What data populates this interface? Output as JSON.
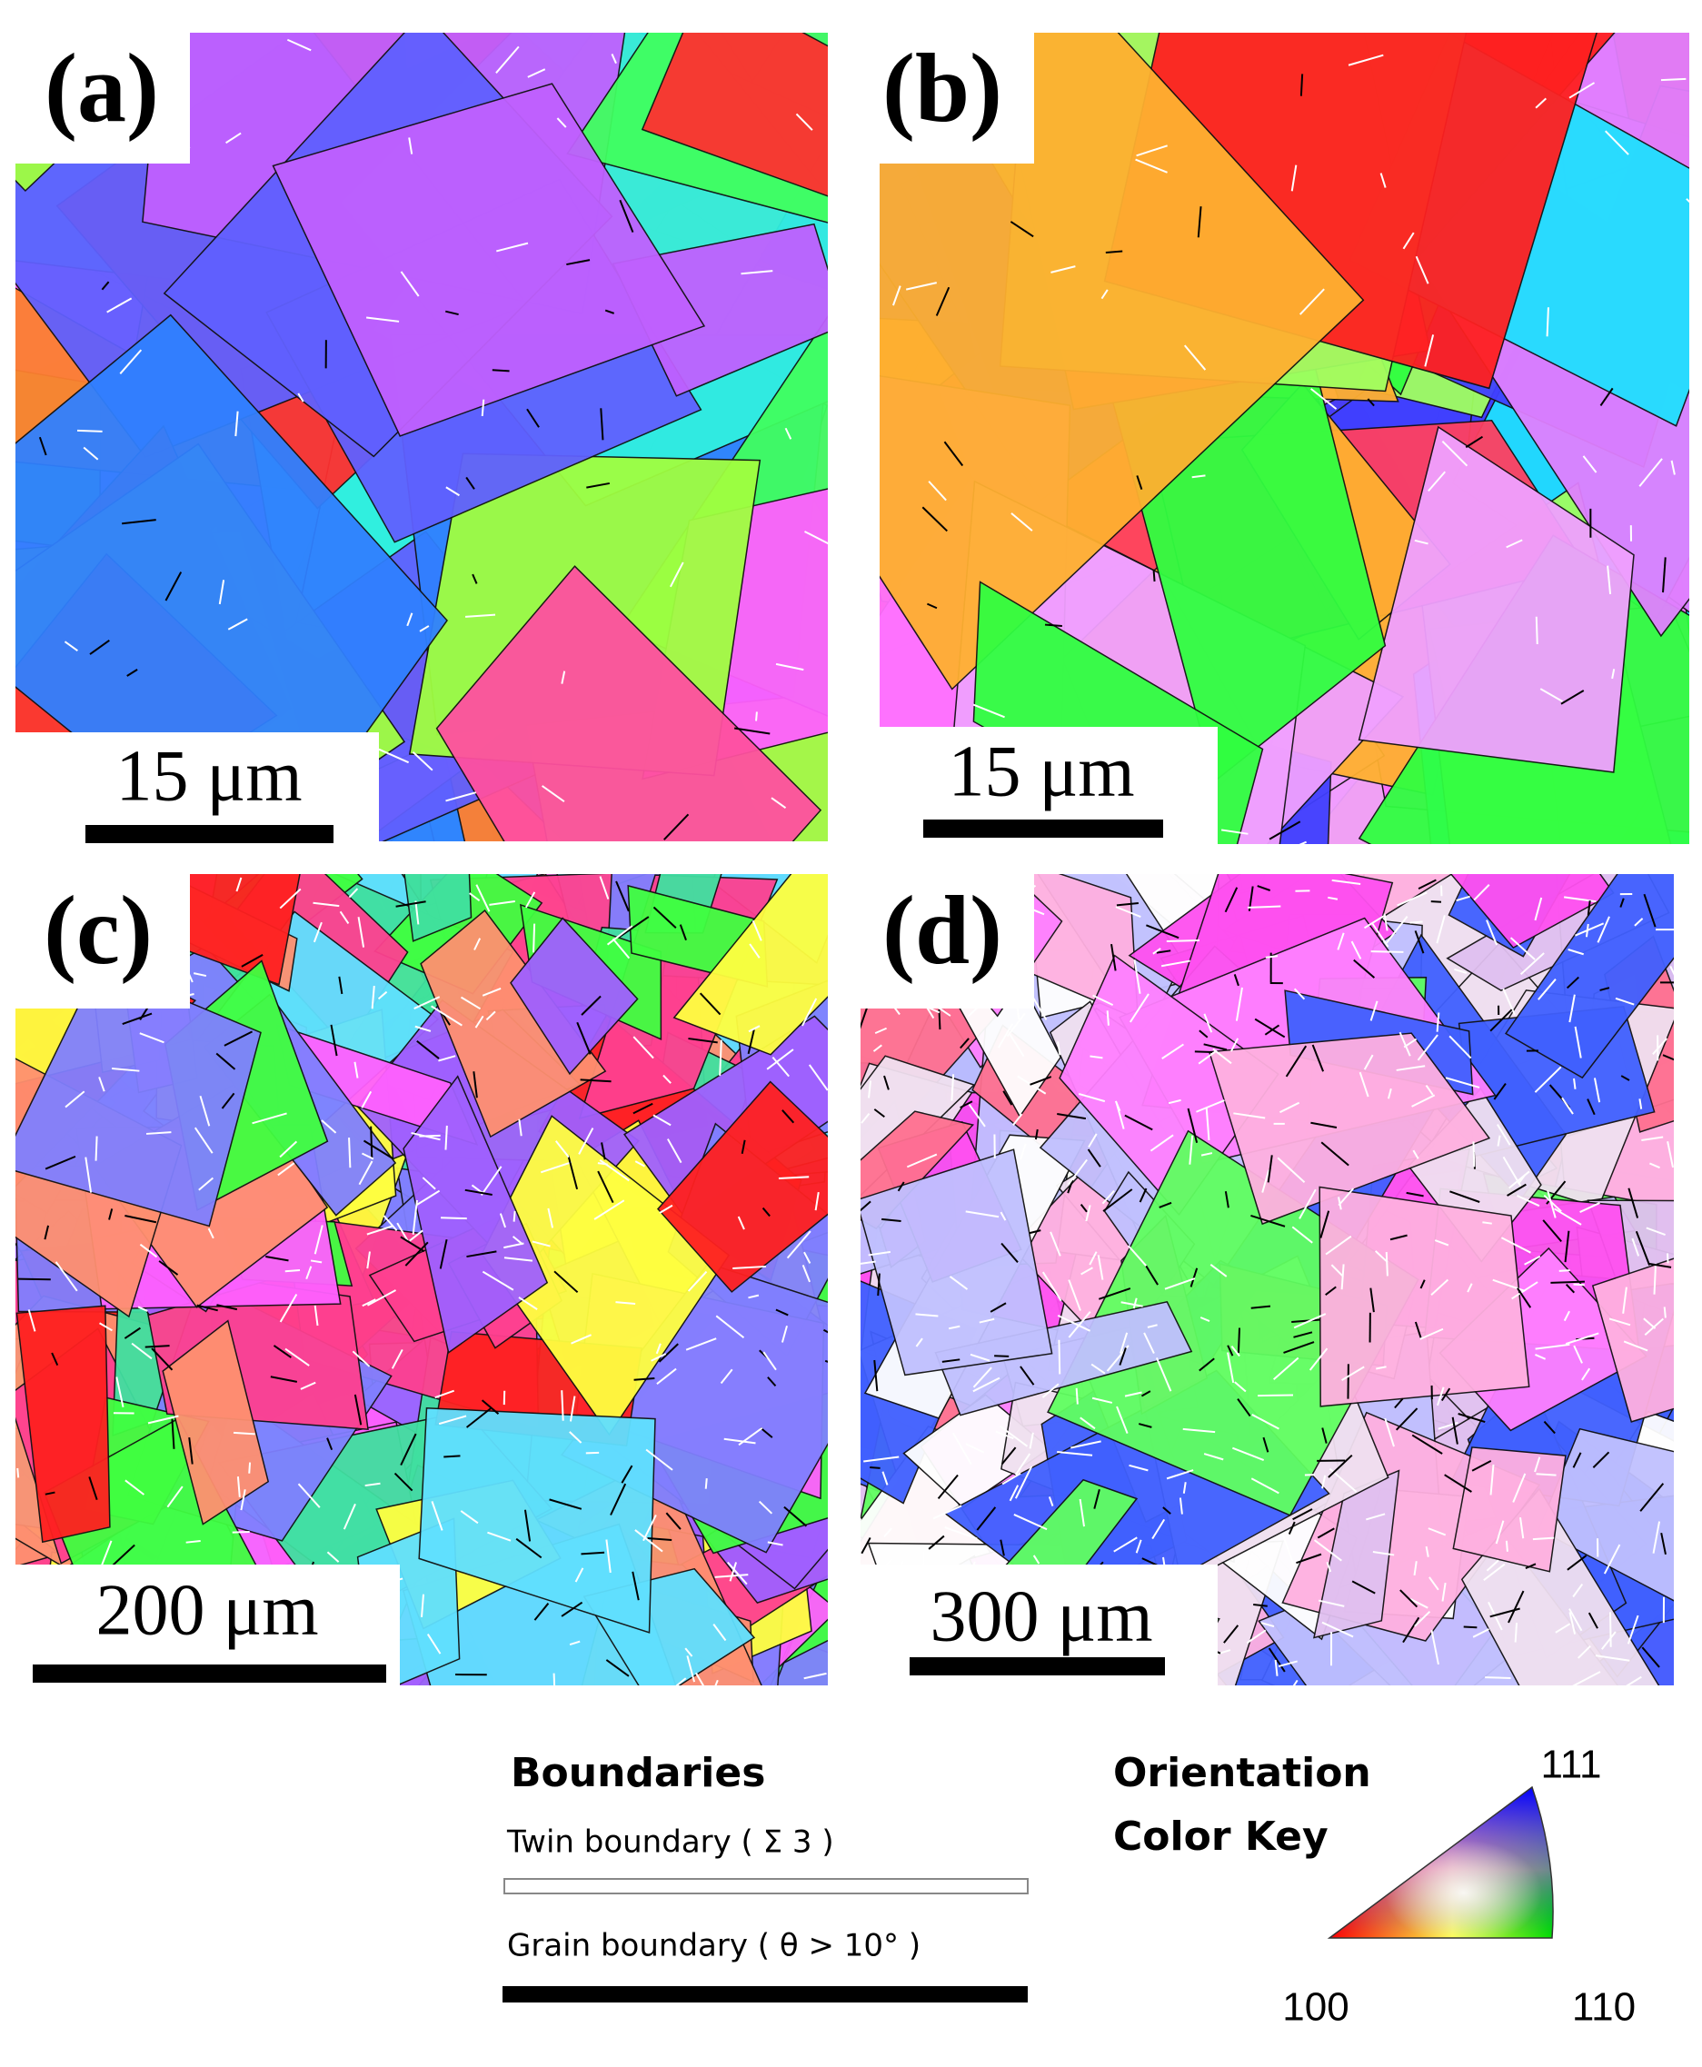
{
  "panels": [
    {
      "label": "(a)",
      "scale_bar": "15 μm"
    },
    {
      "label": "(b)",
      "scale_bar": "15 μm"
    },
    {
      "label": "(c)",
      "scale_bar": "200 μm"
    },
    {
      "label": "(d)",
      "scale_bar": "300 μm"
    }
  ],
  "boundaries_legend": {
    "title": "Boundaries",
    "items": [
      {
        "label": "Twin boundary ( Σ 3 )"
      },
      {
        "label": "Grain boundary ( θ > 10° )"
      }
    ]
  },
  "color_key": {
    "title_lines": [
      "Orientation",
      "Color Key"
    ],
    "vertices": [
      "100",
      "110",
      "111"
    ]
  }
}
